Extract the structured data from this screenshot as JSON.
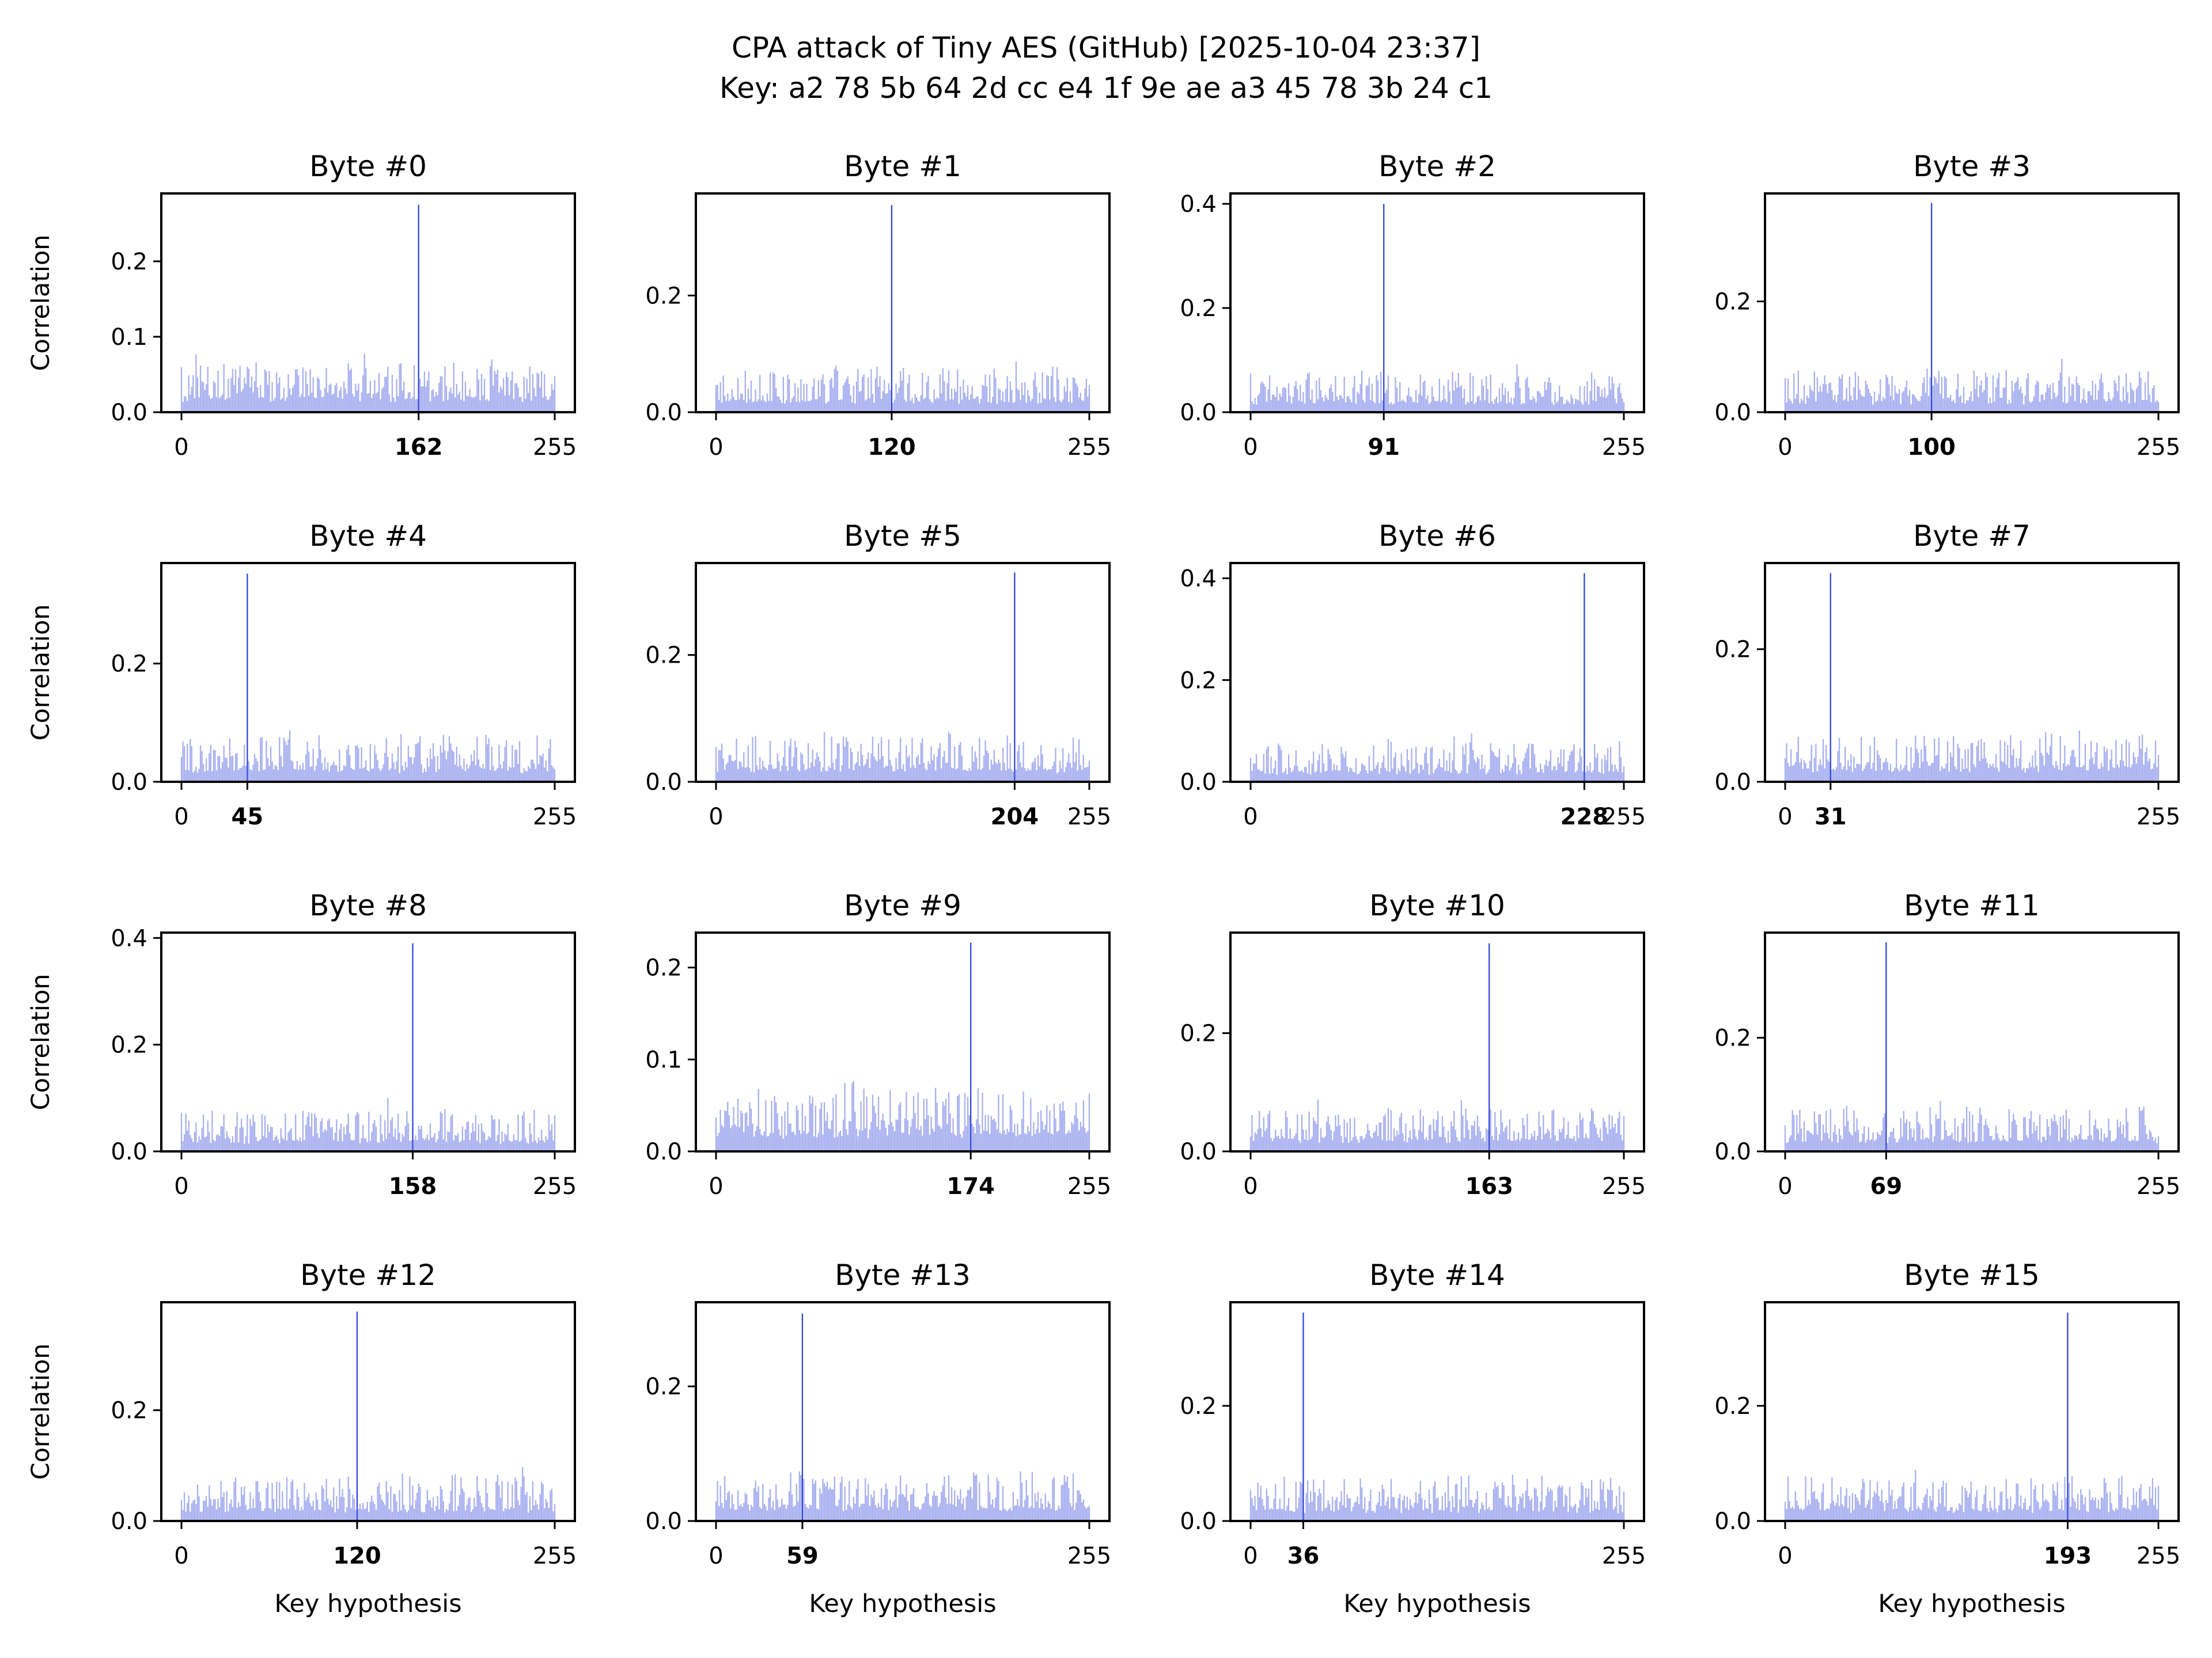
{
  "figure": {
    "title_line1": "CPA attack of Tiny AES (GitHub) [2025-10-04 23:37]",
    "title_line2": "Key: a2 78 5b 64 2d cc e4 1f 9e ae a3 45 78 3b 24 c1"
  },
  "colors": {
    "noise": "#a8b0f0",
    "peak": "#2f45d8",
    "axes": "#000000"
  },
  "chart_data": [
    {
      "type": "bar",
      "title": "Byte #0",
      "xlabel": "",
      "ylabel": "Correlation",
      "xlim": [
        0,
        255
      ],
      "ylim": [
        0,
        0.29
      ],
      "yticks": [
        "0.0",
        "0.1",
        "0.2"
      ],
      "xticks": [
        "0",
        "162",
        "255"
      ],
      "peak_key": 162,
      "peak_value": 0.275,
      "noise_level": 0.028,
      "noise_spread": 0.05,
      "seed": 11
    },
    {
      "type": "bar",
      "title": "Byte #1",
      "xlabel": "",
      "ylabel": "",
      "xlim": [
        0,
        255
      ],
      "ylim": [
        0,
        0.375
      ],
      "yticks": [
        "0.0",
        "0.2"
      ],
      "xticks": [
        "0",
        "120",
        "255"
      ],
      "peak_key": 120,
      "peak_value": 0.355,
      "noise_level": 0.03,
      "noise_spread": 0.06,
      "seed": 23
    },
    {
      "type": "bar",
      "title": "Byte #2",
      "xlabel": "",
      "ylabel": "",
      "xlim": [
        0,
        255
      ],
      "ylim": [
        0,
        0.42
      ],
      "yticks": [
        "0.0",
        "0.2",
        "0.4"
      ],
      "xticks": [
        "0",
        "91",
        "255"
      ],
      "peak_key": 91,
      "peak_value": 0.4,
      "noise_level": 0.03,
      "noise_spread": 0.06,
      "seed": 37
    },
    {
      "type": "bar",
      "title": "Byte #3",
      "xlabel": "",
      "ylabel": "",
      "xlim": [
        0,
        255
      ],
      "ylim": [
        0,
        0.395
      ],
      "yticks": [
        "0.0",
        "0.2"
      ],
      "xticks": [
        "0",
        "100",
        "255"
      ],
      "peak_key": 100,
      "peak_value": 0.378,
      "noise_level": 0.03,
      "noise_spread": 0.06,
      "seed": 41
    },
    {
      "type": "bar",
      "title": "Byte #4",
      "xlabel": "",
      "ylabel": "Correlation",
      "xlim": [
        0,
        255
      ],
      "ylim": [
        0,
        0.37
      ],
      "yticks": [
        "0.0",
        "0.2"
      ],
      "xticks": [
        "0",
        "45",
        "255"
      ],
      "peak_key": 45,
      "peak_value": 0.352,
      "noise_level": 0.032,
      "noise_spread": 0.06,
      "seed": 53
    },
    {
      "type": "bar",
      "title": "Byte #5",
      "xlabel": "",
      "ylabel": "",
      "xlim": [
        0,
        255
      ],
      "ylim": [
        0,
        0.345
      ],
      "yticks": [
        "0.0",
        "0.2"
      ],
      "xticks": [
        "0",
        "204",
        "255"
      ],
      "peak_key": 204,
      "peak_value": 0.33,
      "noise_level": 0.03,
      "noise_spread": 0.055,
      "seed": 67
    },
    {
      "type": "bar",
      "title": "Byte #6",
      "xlabel": "",
      "ylabel": "",
      "xlim": [
        0,
        255
      ],
      "ylim": [
        0,
        0.43
      ],
      "yticks": [
        "0.0",
        "0.2",
        "0.4"
      ],
      "xticks": [
        "0",
        "228",
        "255"
      ],
      "peak_key": 228,
      "peak_value": 0.41,
      "noise_level": 0.03,
      "noise_spread": 0.06,
      "seed": 71
    },
    {
      "type": "bar",
      "title": "Byte #7",
      "xlabel": "",
      "ylabel": "",
      "xlim": [
        0,
        255
      ],
      "ylim": [
        0,
        0.33
      ],
      "yticks": [
        "0.0",
        "0.2"
      ],
      "xticks": [
        "0",
        "31",
        "255"
      ],
      "peak_key": 31,
      "peak_value": 0.315,
      "noise_level": 0.03,
      "noise_spread": 0.055,
      "seed": 83
    },
    {
      "type": "bar",
      "title": "Byte #8",
      "xlabel": "",
      "ylabel": "Correlation",
      "xlim": [
        0,
        255
      ],
      "ylim": [
        0,
        0.41
      ],
      "yticks": [
        "0.0",
        "0.2",
        "0.4"
      ],
      "xticks": [
        "0",
        "158",
        "255"
      ],
      "peak_key": 158,
      "peak_value": 0.39,
      "noise_level": 0.03,
      "noise_spread": 0.06,
      "seed": 97
    },
    {
      "type": "bar",
      "title": "Byte #9",
      "xlabel": "",
      "ylabel": "",
      "xlim": [
        0,
        255
      ],
      "ylim": [
        0,
        0.238
      ],
      "yticks": [
        "0.0",
        "0.1",
        "0.2"
      ],
      "xticks": [
        "0",
        "174",
        "255"
      ],
      "peak_key": 174,
      "peak_value": 0.227,
      "noise_level": 0.03,
      "noise_spread": 0.05,
      "seed": 101
    },
    {
      "type": "bar",
      "title": "Byte #10",
      "xlabel": "",
      "ylabel": "",
      "xlim": [
        0,
        255
      ],
      "ylim": [
        0,
        0.37
      ],
      "yticks": [
        "0.0",
        "0.2"
      ],
      "xticks": [
        "0",
        "163",
        "255"
      ],
      "peak_key": 163,
      "peak_value": 0.352,
      "noise_level": 0.03,
      "noise_spread": 0.055,
      "seed": 113
    },
    {
      "type": "bar",
      "title": "Byte #11",
      "xlabel": "",
      "ylabel": "",
      "xlim": [
        0,
        255
      ],
      "ylim": [
        0,
        0.385
      ],
      "yticks": [
        "0.0",
        "0.2"
      ],
      "xticks": [
        "0",
        "69",
        "255"
      ],
      "peak_key": 69,
      "peak_value": 0.368,
      "noise_level": 0.03,
      "noise_spread": 0.06,
      "seed": 127
    },
    {
      "type": "bar",
      "title": "Byte #12",
      "xlabel": "Key hypothesis",
      "ylabel": "Correlation",
      "xlim": [
        0,
        255
      ],
      "ylim": [
        0,
        0.395
      ],
      "yticks": [
        "0.0",
        "0.2"
      ],
      "xticks": [
        "0",
        "120",
        "255"
      ],
      "peak_key": 120,
      "peak_value": 0.378,
      "noise_level": 0.03,
      "noise_spread": 0.065,
      "seed": 131
    },
    {
      "type": "bar",
      "title": "Byte #13",
      "xlabel": "Key hypothesis",
      "ylabel": "",
      "xlim": [
        0,
        255
      ],
      "ylim": [
        0,
        0.325
      ],
      "yticks": [
        "0.0",
        "0.2"
      ],
      "xticks": [
        "0",
        "59",
        "255"
      ],
      "peak_key": 59,
      "peak_value": 0.308,
      "noise_level": 0.03,
      "noise_spread": 0.055,
      "seed": 139
    },
    {
      "type": "bar",
      "title": "Byte #14",
      "xlabel": "Key hypothesis",
      "ylabel": "",
      "xlim": [
        0,
        255
      ],
      "ylim": [
        0,
        0.38
      ],
      "yticks": [
        "0.0",
        "0.2"
      ],
      "xticks": [
        "0",
        "36",
        "255"
      ],
      "peak_key": 36,
      "peak_value": 0.362,
      "noise_level": 0.03,
      "noise_spread": 0.06,
      "seed": 149
    },
    {
      "type": "bar",
      "title": "Byte #15",
      "xlabel": "Key hypothesis",
      "ylabel": "",
      "xlim": [
        0,
        255
      ],
      "ylim": [
        0,
        0.38
      ],
      "yticks": [
        "0.0",
        "0.2"
      ],
      "xticks": [
        "0",
        "193",
        "255"
      ],
      "peak_key": 193,
      "peak_value": 0.362,
      "noise_level": 0.03,
      "noise_spread": 0.06,
      "seed": 157
    }
  ]
}
